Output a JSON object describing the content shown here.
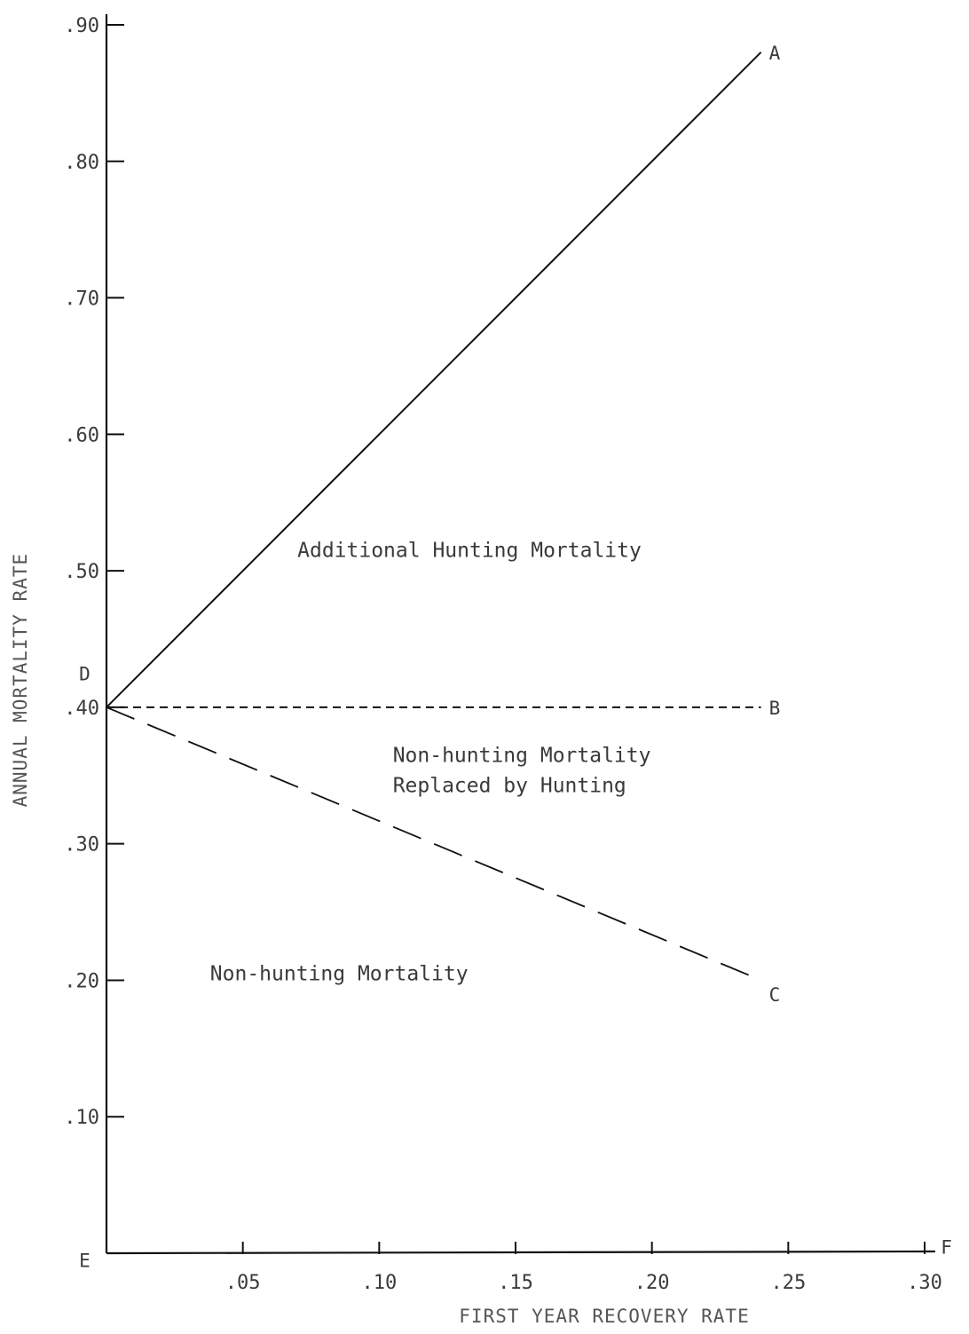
{
  "chart_data": {
    "type": "line",
    "xlabel": "FIRST YEAR RECOVERY RATE",
    "ylabel": "ANNUAL MORTALITY RATE",
    "xlim": [
      0,
      0.3
    ],
    "ylim": [
      0,
      0.9
    ],
    "x_ticks": [
      ".05",
      ".10",
      ".15",
      ".20",
      ".25",
      ".30"
    ],
    "x_tick_values": [
      0.05,
      0.1,
      0.15,
      0.2,
      0.25,
      0.3
    ],
    "y_ticks": [
      ".10",
      ".20",
      ".30",
      ".40",
      ".50",
      ".60",
      ".70",
      ".80",
      ".90"
    ],
    "y_tick_values": [
      0.1,
      0.2,
      0.3,
      0.4,
      0.5,
      0.6,
      0.7,
      0.8,
      0.9
    ],
    "series": [
      {
        "name": "A",
        "line_style": "solid",
        "x": [
          0,
          0.24
        ],
        "y": [
          0.4,
          0.88
        ]
      },
      {
        "name": "B",
        "line_style": "short-dash",
        "x": [
          0,
          0.24
        ],
        "y": [
          0.4,
          0.4
        ]
      },
      {
        "name": "C",
        "line_style": "long-dash",
        "x": [
          0,
          0.24
        ],
        "y": [
          0.4,
          0.2
        ]
      }
    ],
    "point_labels": [
      {
        "text": "A",
        "x": 0.245,
        "y": 0.88
      },
      {
        "text": "B",
        "x": 0.245,
        "y": 0.4
      },
      {
        "text": "C",
        "x": 0.245,
        "y": 0.19
      },
      {
        "text": "D",
        "x": -0.008,
        "y": 0.425
      },
      {
        "text": "E",
        "x": -0.008,
        "y": -0.005
      },
      {
        "text": "F",
        "x": 0.308,
        "y": 0.005
      }
    ],
    "region_labels": [
      {
        "lines": [
          "Additional Hunting Mortality"
        ],
        "x": 0.07,
        "y": 0.51
      },
      {
        "lines": [
          "Non-hunting Mortality",
          "Replaced by Hunting"
        ],
        "x": 0.105,
        "y": 0.36
      },
      {
        "lines": [
          "Non-hunting Mortality"
        ],
        "x": 0.038,
        "y": 0.2
      }
    ],
    "grid": false,
    "legend": "none"
  }
}
